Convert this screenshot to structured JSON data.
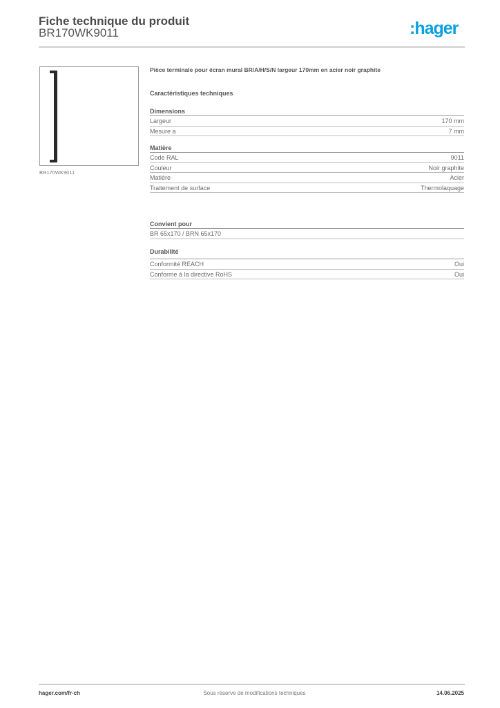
{
  "header": {
    "title": "Fiche technique du produit",
    "product_code": "BR170WK9011",
    "logo": ":hager"
  },
  "image": {
    "caption": "BR170WK9011"
  },
  "description": "Pièce terminale pour écran mural BR/A/H/S/N largeur 170mm en acier noir graphite",
  "tech_heading": "Caractéristiques techniques",
  "sections": [
    {
      "title": "Dimensions",
      "rows": [
        {
          "label": "Largeur",
          "value": "170 mm"
        },
        {
          "label": "Mesure a",
          "value": "7 mm"
        }
      ]
    },
    {
      "title": "Matière",
      "rows": [
        {
          "label": "Code RAL",
          "value": "9011"
        },
        {
          "label": "Couleur",
          "value": "Noir graphite"
        },
        {
          "label": "Matière",
          "value": "Acier"
        },
        {
          "label": "Traitement de surface",
          "value": "Thermolaquage"
        }
      ]
    },
    {
      "title": "Convient pour",
      "rows": [
        {
          "label": "BR 65x170 / BRN 65x170",
          "value": ""
        }
      ]
    },
    {
      "title": "Durabilité",
      "rows": [
        {
          "label": "Conformité REACH",
          "value": "Oui"
        },
        {
          "label": "Conforme à la directive RoHS",
          "value": "Oui"
        }
      ]
    }
  ],
  "footer": {
    "website": "hager.com/fr-ch",
    "disclaimer": "Sous réserve de modifications techniques",
    "date": "14.06.2025"
  },
  "colors": {
    "brand": "#0aa0e0"
  }
}
